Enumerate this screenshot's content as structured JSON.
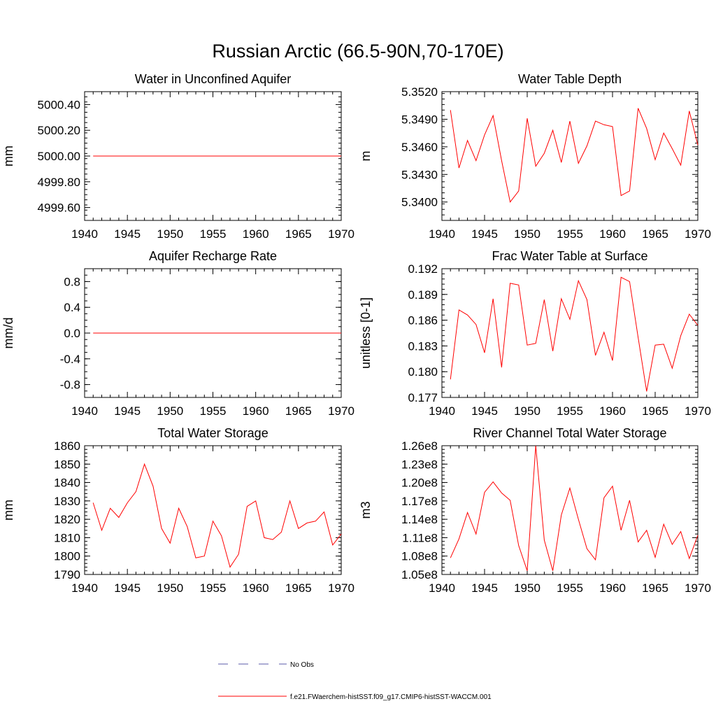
{
  "figure_title": "Russian Arctic (66.5-90N,70-170E)",
  "colors": {
    "model_line": "#ff0000",
    "obs_line": "#5a5aa8",
    "axis": "#000000"
  },
  "legend": {
    "obs_label": "No Obs",
    "model_label": "f.e21.FWaerchem-histSST.f09_g17.CMIP6-histSST-WACCM.001"
  },
  "chart_data": [
    {
      "type": "line",
      "title": "Water in Unconfined Aquifer",
      "ylabel": "mm",
      "xlim": [
        1940,
        1970
      ],
      "ylim": [
        4999.5,
        5000.5
      ],
      "x_ticks": [
        1940,
        1945,
        1950,
        1955,
        1960,
        1965,
        1970
      ],
      "x_tick_labels": [
        "1940",
        "1945",
        "1950",
        "1955",
        "1960",
        "1965",
        "1970"
      ],
      "y_ticks": [
        4999.6,
        4999.8,
        5000.0,
        5000.2,
        5000.4
      ],
      "y_tick_labels": [
        "4999.60",
        "4999.80",
        "5000.00",
        "5000.20",
        "5000.40"
      ],
      "y_minor_step": 0.04,
      "series": [
        {
          "x": [
            1941,
            1942,
            1943,
            1944,
            1945,
            1946,
            1947,
            1948,
            1949,
            1950,
            1951,
            1952,
            1953,
            1954,
            1955,
            1956,
            1957,
            1958,
            1959,
            1960,
            1961,
            1962,
            1963,
            1964,
            1965,
            1966,
            1967,
            1968,
            1969,
            1970
          ],
          "y": [
            5000,
            5000,
            5000,
            5000,
            5000,
            5000,
            5000,
            5000,
            5000,
            5000,
            5000,
            5000,
            5000,
            5000,
            5000,
            5000,
            5000,
            5000,
            5000,
            5000,
            5000,
            5000,
            5000,
            5000,
            5000,
            5000,
            5000,
            5000,
            5000,
            5000
          ]
        }
      ]
    },
    {
      "type": "line",
      "title": "Water Table Depth",
      "ylabel": "m",
      "xlim": [
        1940,
        1970
      ],
      "ylim": [
        5.338,
        5.352
      ],
      "x_ticks": [
        1940,
        1945,
        1950,
        1955,
        1960,
        1965,
        1970
      ],
      "x_tick_labels": [
        "1940",
        "1945",
        "1950",
        "1955",
        "1960",
        "1965",
        "1970"
      ],
      "y_ticks": [
        5.34,
        5.343,
        5.346,
        5.349,
        5.352
      ],
      "y_tick_labels": [
        "5.3400",
        "5.3430",
        "5.3460",
        "5.3490",
        "5.3520"
      ],
      "y_minor_step": 0.0006,
      "series": [
        {
          "x": [
            1941,
            1942,
            1943,
            1944,
            1945,
            1946,
            1947,
            1948,
            1949,
            1950,
            1951,
            1952,
            1953,
            1954,
            1955,
            1956,
            1957,
            1958,
            1959,
            1960,
            1961,
            1962,
            1963,
            1964,
            1965,
            1966,
            1967,
            1968,
            1969,
            1970
          ],
          "y": [
            5.35,
            5.3437,
            5.3467,
            5.3445,
            5.3473,
            5.3494,
            5.3445,
            5.34,
            5.3412,
            5.3491,
            5.3439,
            5.3453,
            5.3478,
            5.3443,
            5.3488,
            5.3442,
            5.3461,
            5.3488,
            5.3484,
            5.3482,
            5.3407,
            5.3412,
            5.3502,
            5.348,
            5.3446,
            5.3475,
            5.3458,
            5.344,
            5.3499,
            5.3462
          ]
        }
      ]
    },
    {
      "type": "line",
      "title": "Aquifer Recharge Rate",
      "ylabel": "mm/d",
      "xlim": [
        1940,
        1970
      ],
      "ylim": [
        -1.0,
        1.0
      ],
      "x_ticks": [
        1940,
        1945,
        1950,
        1955,
        1960,
        1965,
        1970
      ],
      "x_tick_labels": [
        "1940",
        "1945",
        "1950",
        "1955",
        "1960",
        "1965",
        "1970"
      ],
      "y_ticks": [
        -0.8,
        -0.4,
        0.0,
        0.4,
        0.8
      ],
      "y_tick_labels": [
        "-0.8",
        "-0.4",
        "0.0",
        "0.4",
        "0.8"
      ],
      "y_minor_step": 0.1,
      "series": [
        {
          "x": [
            1941,
            1942,
            1943,
            1944,
            1945,
            1946,
            1947,
            1948,
            1949,
            1950,
            1951,
            1952,
            1953,
            1954,
            1955,
            1956,
            1957,
            1958,
            1959,
            1960,
            1961,
            1962,
            1963,
            1964,
            1965,
            1966,
            1967,
            1968,
            1969,
            1970
          ],
          "y": [
            0,
            0,
            0,
            0,
            0,
            0,
            0,
            0,
            0,
            0,
            0,
            0,
            0,
            0,
            0,
            0,
            0,
            0,
            0,
            0,
            0,
            0,
            0,
            0,
            0,
            0,
            0,
            0,
            0,
            0
          ]
        }
      ]
    },
    {
      "type": "line",
      "title": "Frac Water Table at Surface",
      "ylabel": "unitless [0-1]",
      "xlim": [
        1940,
        1970
      ],
      "ylim": [
        0.177,
        0.192
      ],
      "x_ticks": [
        1940,
        1945,
        1950,
        1955,
        1960,
        1965,
        1970
      ],
      "x_tick_labels": [
        "1940",
        "1945",
        "1950",
        "1955",
        "1960",
        "1965",
        "1970"
      ],
      "y_ticks": [
        0.177,
        0.18,
        0.183,
        0.186,
        0.189,
        0.192
      ],
      "y_tick_labels": [
        "0.177",
        "0.180",
        "0.183",
        "0.186",
        "0.189",
        "0.192"
      ],
      "y_minor_step": 0.0006,
      "series": [
        {
          "x": [
            1941,
            1942,
            1943,
            1944,
            1945,
            1946,
            1947,
            1948,
            1949,
            1950,
            1951,
            1952,
            1953,
            1954,
            1955,
            1956,
            1957,
            1958,
            1959,
            1960,
            1961,
            1962,
            1963,
            1964,
            1965,
            1966,
            1967,
            1968,
            1969,
            1970
          ],
          "y": [
            0.1791,
            0.1872,
            0.1866,
            0.1855,
            0.1822,
            0.1885,
            0.1805,
            0.1903,
            0.1901,
            0.1831,
            0.1833,
            0.1884,
            0.1824,
            0.1885,
            0.1861,
            0.1906,
            0.1884,
            0.1819,
            0.1846,
            0.1813,
            0.191,
            0.1905,
            0.184,
            0.1777,
            0.1831,
            0.1832,
            0.1804,
            0.1842,
            0.1867,
            0.1854
          ]
        }
      ]
    },
    {
      "type": "line",
      "title": "Total Water Storage",
      "ylabel": "mm",
      "xlim": [
        1940,
        1970
      ],
      "ylim": [
        1790,
        1860
      ],
      "x_ticks": [
        1940,
        1945,
        1950,
        1955,
        1960,
        1965,
        1970
      ],
      "x_tick_labels": [
        "1940",
        "1945",
        "1950",
        "1955",
        "1960",
        "1965",
        "1970"
      ],
      "y_ticks": [
        1790,
        1800,
        1810,
        1820,
        1830,
        1840,
        1850,
        1860
      ],
      "y_tick_labels": [
        "1790",
        "1800",
        "1810",
        "1820",
        "1830",
        "1840",
        "1850",
        "1860"
      ],
      "y_minor_step": 2,
      "series": [
        {
          "x": [
            1941,
            1942,
            1943,
            1944,
            1945,
            1946,
            1947,
            1948,
            1949,
            1950,
            1951,
            1952,
            1953,
            1954,
            1955,
            1956,
            1957,
            1958,
            1959,
            1960,
            1961,
            1962,
            1963,
            1964,
            1965,
            1966,
            1967,
            1968,
            1969,
            1970
          ],
          "y": [
            1829,
            1814,
            1826,
            1821,
            1829,
            1835,
            1850,
            1838,
            1815,
            1807,
            1826,
            1816,
            1799,
            1800,
            1819,
            1811,
            1794,
            1801,
            1827,
            1830,
            1810,
            1809,
            1813,
            1830,
            1815,
            1818,
            1819,
            1824,
            1806,
            1812
          ]
        }
      ]
    },
    {
      "type": "line",
      "title": "River Channel Total Water Storage",
      "ylabel": "m3",
      "xlim": [
        1940,
        1970
      ],
      "ylim": [
        105000000,
        126000000
      ],
      "x_ticks": [
        1940,
        1945,
        1950,
        1955,
        1960,
        1965,
        1970
      ],
      "x_tick_labels": [
        "1940",
        "1945",
        "1950",
        "1955",
        "1960",
        "1965",
        "1970"
      ],
      "y_ticks": [
        105000000,
        108000000,
        111000000,
        114000000,
        117000000,
        120000000,
        123000000,
        126000000
      ],
      "y_tick_labels": [
        "1.05e8",
        "1.08e8",
        "1.11e8",
        "1.14e8",
        "1.17e8",
        "1.20e8",
        "1.23e8",
        "1.26e8"
      ],
      "y_minor_step": 600000,
      "series": [
        {
          "x": [
            1941,
            1942,
            1943,
            1944,
            1945,
            1946,
            1947,
            1948,
            1949,
            1950,
            1951,
            1952,
            1953,
            1954,
            1955,
            1956,
            1957,
            1958,
            1959,
            1960,
            1961,
            1962,
            1963,
            1964,
            1965,
            1966,
            1967,
            1968,
            1969,
            1970
          ],
          "y": [
            107700000,
            110800000,
            115100000,
            111600000,
            118400000,
            120100000,
            118300000,
            117100000,
            109700000,
            105600000,
            126000000,
            110600000,
            105600000,
            114700000,
            119100000,
            114000000,
            109200000,
            107400000,
            117500000,
            119400000,
            112200000,
            117100000,
            110300000,
            112200000,
            107800000,
            113200000,
            109900000,
            112000000,
            107600000,
            111400000
          ]
        }
      ]
    }
  ]
}
